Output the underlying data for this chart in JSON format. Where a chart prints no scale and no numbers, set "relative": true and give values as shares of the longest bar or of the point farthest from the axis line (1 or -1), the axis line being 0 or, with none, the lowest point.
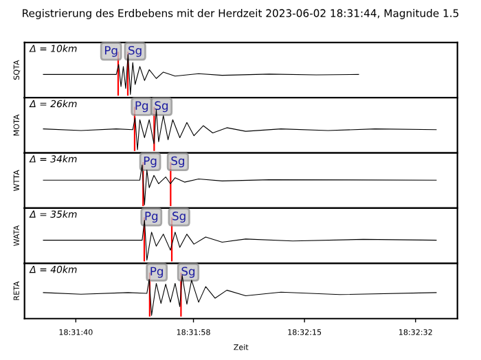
{
  "chart_data": [
    {
      "type": "line",
      "title": "Registrierung des Erdbebens mit der Herdzeit 2023-06-02 18:31:44, Magnitude 1.5",
      "ylabel": "SQTA",
      "relative": true,
      "tick_labels": false,
      "xlim": [
        18.5256,
        18.544
      ],
      "annotations": [
        "Δ = 10km"
      ],
      "series": [
        {
          "color": "#000000",
          "x": [
            18.5264,
            18.529,
            18.5295,
            18.5296,
            18.5297,
            18.5298,
            18.5299,
            18.53,
            18.5301,
            18.5302,
            18.5303,
            18.5305,
            18.5307,
            18.5309,
            18.5312,
            18.5315,
            18.532,
            18.533,
            18.534,
            18.536,
            18.538,
            18.5398
          ],
          "values": [
            0.5,
            0.5,
            0.5,
            0.75,
            0.2,
            0.7,
            0.15,
            1,
            0,
            0.8,
            0.25,
            0.7,
            0.35,
            0.62,
            0.4,
            0.56,
            0.46,
            0.52,
            0.48,
            0.51,
            0.49,
            0.5
          ]
        }
      ],
      "ref_lines": [
        {
          "axis": "x",
          "value": 18.52958,
          "label": "Pg",
          "color": "#ff0000"
        },
        {
          "axis": "x",
          "value": 18.52999,
          "label": "Sg",
          "color": "#ff0000"
        }
      ]
    },
    {
      "type": "line",
      "ylabel": "MOTA",
      "relative": true,
      "tick_labels": false,
      "xlim": [
        18.5256,
        18.544
      ],
      "annotations": [
        "Δ = 26km"
      ],
      "series": [
        {
          "color": "#000000",
          "x": [
            18.5264,
            18.528,
            18.5295,
            18.5302,
            18.5303,
            18.5304,
            18.5305,
            18.5307,
            18.5309,
            18.5311,
            18.5312,
            18.5313,
            18.5315,
            18.5317,
            18.5319,
            18.5322,
            18.5325,
            18.5328,
            18.5332,
            18.5336,
            18.5342,
            18.535,
            18.5365,
            18.5385,
            18.5405,
            18.5431
          ],
          "values": [
            0.52,
            0.48,
            0.52,
            0.5,
            0.8,
            0,
            0.75,
            0.3,
            0.75,
            0.15,
            1,
            0.2,
            0.85,
            0.25,
            0.75,
            0.3,
            0.68,
            0.35,
            0.6,
            0.42,
            0.55,
            0.46,
            0.52,
            0.48,
            0.52,
            0.5
          ]
        }
      ],
      "ref_lines": [
        {
          "axis": "x",
          "value": 18.53028,
          "label": "Pg",
          "color": "#ff0000"
        },
        {
          "axis": "x",
          "value": 18.53111,
          "label": "Sg",
          "color": "#ff0000"
        }
      ]
    },
    {
      "type": "line",
      "ylabel": "WTTA",
      "relative": true,
      "tick_labels": false,
      "xlim": [
        18.5256,
        18.544
      ],
      "annotations": [
        "Δ = 34km"
      ],
      "series": [
        {
          "color": "#000000",
          "x": [
            18.5264,
            18.5305,
            18.5306,
            18.5307,
            18.5308,
            18.5309,
            18.5311,
            18.5313,
            18.5316,
            18.5318,
            18.532,
            18.5324,
            18.533,
            18.534,
            18.536,
            18.5431
          ],
          "values": [
            0.62,
            0.62,
            1,
            0,
            0.87,
            0.43,
            0.74,
            0.53,
            0.7,
            0.53,
            0.68,
            0.57,
            0.65,
            0.6,
            0.63,
            0.62
          ]
        }
      ],
      "ref_lines": [
        {
          "axis": "x",
          "value": 18.53064,
          "label": "Pg",
          "color": "#ff0000"
        },
        {
          "axis": "x",
          "value": 18.53181,
          "label": "Sg",
          "color": "#ff0000"
        }
      ]
    },
    {
      "type": "line",
      "ylabel": "WATA",
      "relative": true,
      "tick_labels": false,
      "xlim": [
        18.5256,
        18.544
      ],
      "annotations": [
        "Δ = 35km"
      ],
      "series": [
        {
          "color": "#000000",
          "x": [
            18.5264,
            18.5306,
            18.5307,
            18.5308,
            18.531,
            18.5312,
            18.5315,
            18.5318,
            18.532,
            18.5322,
            18.5325,
            18.5328,
            18.5333,
            18.534,
            18.535,
            18.537,
            18.54,
            18.5431
          ],
          "values": [
            0.5,
            0.5,
            1,
            0,
            0.7,
            0.35,
            0.65,
            0.25,
            0.7,
            0.32,
            0.65,
            0.4,
            0.58,
            0.45,
            0.53,
            0.48,
            0.52,
            0.5
          ]
        }
      ],
      "ref_lines": [
        {
          "axis": "x",
          "value": 18.53069,
          "label": "Pg",
          "color": "#ff0000"
        },
        {
          "axis": "x",
          "value": 18.53186,
          "label": "Sg",
          "color": "#ff0000"
        }
      ]
    },
    {
      "type": "line",
      "ylabel": "RETA",
      "xlabel": "Zeit",
      "relative": true,
      "tick_labels": "x",
      "xlim": [
        18.5256,
        18.544
      ],
      "xticks": [
        {
          "value": 18.52778,
          "label": "18:31:40"
        },
        {
          "value": 18.53278,
          "label": "18:31:58"
        },
        {
          "value": 18.5375,
          "label": "18:32:15"
        },
        {
          "value": 18.54222,
          "label": "18:32:32"
        }
      ],
      "annotations": [
        "Δ = 40km"
      ],
      "series": [
        {
          "color": "#000000",
          "x": [
            18.5264,
            18.528,
            18.53,
            18.5308,
            18.5309,
            18.531,
            18.5312,
            18.5314,
            18.5316,
            18.5318,
            18.532,
            18.5322,
            18.5323,
            18.5325,
            18.5327,
            18.533,
            18.5333,
            18.5337,
            18.5342,
            18.535,
            18.5365,
            18.539,
            18.5431
          ],
          "values": [
            0.57,
            0.53,
            0.57,
            0.55,
            0.9,
            0,
            0.8,
            0.3,
            0.78,
            0.33,
            0.8,
            0.22,
            1,
            0.28,
            0.88,
            0.33,
            0.72,
            0.43,
            0.63,
            0.49,
            0.58,
            0.52,
            0.57
          ]
        }
      ],
      "ref_lines": [
        {
          "axis": "x",
          "value": 18.53092,
          "label": "Pg",
          "color": "#ff0000"
        },
        {
          "axis": "x",
          "value": 18.53225,
          "label": "Sg",
          "color": "#ff0000"
        }
      ]
    }
  ]
}
